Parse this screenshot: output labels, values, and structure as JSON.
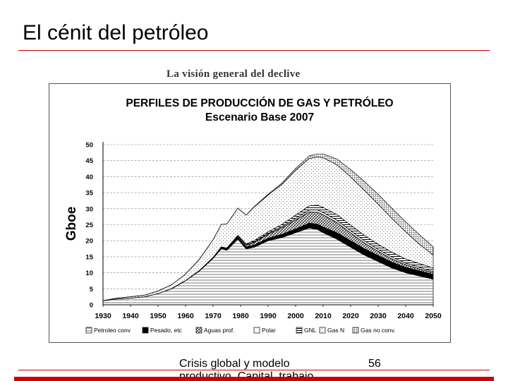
{
  "slide": {
    "title": "El cénit del petróleo",
    "overview_heading": "La visión general del declive",
    "footer_text": "Crisis global y modelo productivo. Capital, trabajo",
    "page_number": "56"
  },
  "colors": {
    "accent": "#cc0000",
    "frame": "#555555",
    "text": "#000000"
  },
  "chart_data": {
    "type": "area",
    "stacked": true,
    "title": "PERFILES DE PRODUCCIÓN DE GAS Y PETRÓLEO",
    "subtitle": "Escenario Base 2007",
    "ylabel": "Gboe",
    "xlabel": "",
    "xlim": [
      1930,
      2050
    ],
    "ylim": [
      0,
      50
    ],
    "yticks": [
      0,
      5,
      10,
      15,
      20,
      25,
      30,
      35,
      40,
      45,
      50
    ],
    "xticks": [
      1930,
      1940,
      1950,
      1960,
      1970,
      1980,
      1990,
      2000,
      2010,
      2020,
      2030,
      2040,
      2050
    ],
    "grid": true,
    "legend_position": "bottom",
    "x": [
      1930,
      1935,
      1940,
      1945,
      1950,
      1955,
      1960,
      1965,
      1970,
      1973,
      1975,
      1979,
      1982,
      1985,
      1990,
      1995,
      2000,
      2005,
      2008,
      2010,
      2015,
      2020,
      2025,
      2030,
      2035,
      2040,
      2045,
      2050
    ],
    "series": [
      {
        "name": "Petroleo conv",
        "pattern": "hlines",
        "values": [
          1.3,
          1.8,
          2.1,
          2.5,
          3.5,
          5.0,
          7.5,
          10.5,
          14.5,
          17.5,
          17.0,
          20.5,
          17.5,
          18.0,
          20.0,
          21.0,
          22.5,
          24.0,
          23.5,
          22.5,
          20.5,
          18.0,
          15.5,
          13.5,
          11.5,
          10.0,
          9.0,
          8.0
        ]
      },
      {
        "name": "Pesado, etc",
        "pattern": "solid",
        "values": [
          0.0,
          0.0,
          0.0,
          0.0,
          0.0,
          0.1,
          0.1,
          0.2,
          0.3,
          0.5,
          0.5,
          0.6,
          0.6,
          0.7,
          0.8,
          1.0,
          1.2,
          1.5,
          1.6,
          1.8,
          2.0,
          2.0,
          2.0,
          1.9,
          1.8,
          1.7,
          1.6,
          1.5
        ]
      },
      {
        "name": "Aguas prof.",
        "pattern": "hatch",
        "values": [
          0.0,
          0.0,
          0.0,
          0.0,
          0.0,
          0.0,
          0.0,
          0.0,
          0.0,
          0.0,
          0.1,
          0.3,
          0.5,
          0.8,
          1.2,
          2.0,
          2.8,
          3.5,
          3.8,
          3.8,
          3.2,
          2.4,
          1.8,
          1.3,
          1.0,
          0.8,
          0.6,
          0.5
        ]
      },
      {
        "name": "Polar",
        "pattern": "empty",
        "values": [
          0.0,
          0.0,
          0.0,
          0.0,
          0.0,
          0.0,
          0.0,
          0.0,
          0.0,
          0.0,
          0.0,
          0.1,
          0.1,
          0.2,
          0.3,
          0.4,
          0.5,
          0.6,
          0.7,
          0.7,
          0.7,
          0.7,
          0.7,
          0.6,
          0.6,
          0.5,
          0.5,
          0.4
        ]
      },
      {
        "name": "GNL",
        "pattern": "dense",
        "values": [
          0.0,
          0.0,
          0.0,
          0.0,
          0.0,
          0.0,
          0.0,
          0.0,
          0.0,
          0.1,
          0.1,
          0.2,
          0.3,
          0.4,
          0.5,
          0.7,
          1.0,
          1.3,
          1.5,
          1.6,
          1.8,
          1.8,
          1.7,
          1.6,
          1.5,
          1.3,
          1.2,
          1.1
        ]
      },
      {
        "name": "Gas N",
        "pattern": "dots",
        "values": [
          0.0,
          0.3,
          0.4,
          0.5,
          0.8,
          1.2,
          2.0,
          3.5,
          5.5,
          7.0,
          7.5,
          8.5,
          9.0,
          10.5,
          11.5,
          12.5,
          14.0,
          14.8,
          15.0,
          15.5,
          15.5,
          15.0,
          14.0,
          12.5,
          10.5,
          8.5,
          6.0,
          4.0
        ]
      },
      {
        "name": "Gas no conv.",
        "pattern": "grid",
        "values": [
          0.0,
          0.0,
          0.0,
          0.0,
          0.0,
          0.0,
          0.0,
          0.0,
          0.0,
          0.0,
          0.0,
          0.0,
          0.0,
          0.1,
          0.2,
          0.4,
          0.6,
          0.8,
          1.0,
          1.2,
          1.8,
          2.3,
          2.8,
          3.1,
          3.2,
          3.1,
          3.0,
          2.6
        ]
      }
    ]
  }
}
